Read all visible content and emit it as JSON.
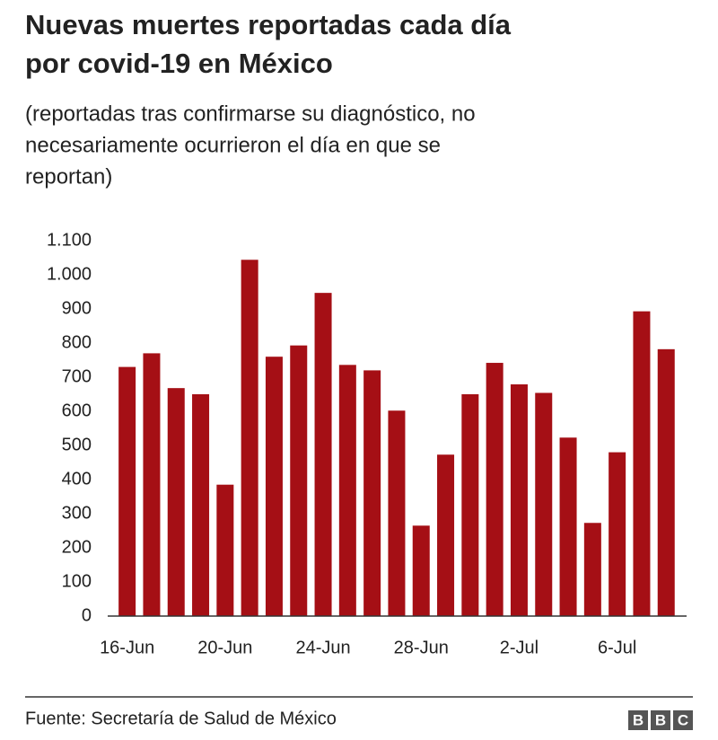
{
  "chart_data": {
    "type": "bar",
    "title": [
      "Nuevas muertes reportadas cada día",
      "por covid-19 en México"
    ],
    "subtitle": [
      "(reportadas tras confirmarse su diagnóstico, no",
      "necesariamente ocurrieron el día en que se",
      "reportan)"
    ],
    "categories": [
      "16-Jun",
      null,
      null,
      null,
      "20-Jun",
      null,
      null,
      null,
      "24-Jun",
      null,
      null,
      null,
      "28-Jun",
      null,
      null,
      null,
      "2-Jul",
      null,
      null,
      null,
      "6-Jul",
      null,
      null
    ],
    "values": [
      730,
      770,
      668,
      650,
      385,
      1044,
      760,
      793,
      947,
      736,
      720,
      602,
      265,
      473,
      650,
      742,
      679,
      654,
      523,
      273,
      480,
      893,
      782
    ],
    "color": "#a50f15",
    "ylim": [
      0,
      1100
    ],
    "yticks": [
      0,
      100,
      200,
      300,
      400,
      500,
      600,
      700,
      800,
      900,
      {
        "value": 1000,
        "label": "1.000"
      },
      {
        "value": 1100,
        "label": "1.100"
      }
    ],
    "grid": false,
    "source": "Fuente: Secretaría de Salud de México",
    "logo": "BBC"
  }
}
